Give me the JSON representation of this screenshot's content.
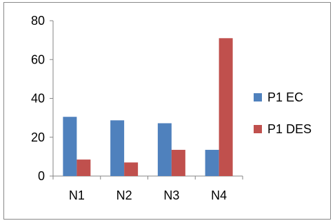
{
  "chart_data": {
    "type": "bar",
    "categories": [
      "N1",
      "N2",
      "N3",
      "N4"
    ],
    "series": [
      {
        "name": "P1 EC",
        "color": "#4f81bd",
        "values": [
          30.5,
          28.7,
          27.2,
          13.5
        ]
      },
      {
        "name": "P1 DES",
        "color": "#c0504d",
        "values": [
          8.5,
          7.0,
          13.5,
          71.0
        ]
      }
    ],
    "y_ticks": [
      "0",
      "20",
      "40",
      "60",
      "80"
    ],
    "ylim": [
      0,
      80
    ],
    "title": "",
    "xlabel": "",
    "ylabel": "",
    "grid": false,
    "legend_position": "right"
  }
}
